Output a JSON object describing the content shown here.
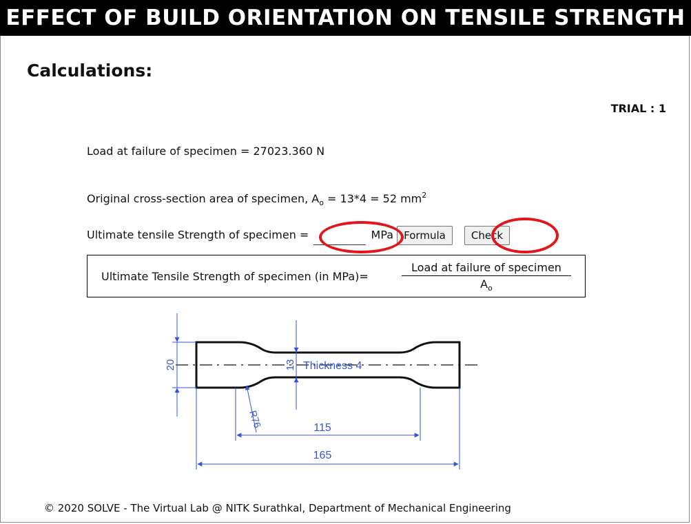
{
  "header": {
    "title": "EFFECT OF BUILD ORIENTATION ON TENSILE STRENGTH"
  },
  "section": {
    "title": "Calculations:"
  },
  "trial": {
    "label": "TRIAL : 1"
  },
  "load": {
    "text": "Load at failure of specimen = 27023.360 N"
  },
  "area": {
    "prefix": "Original cross-section area of specimen, A",
    "sub": "o",
    "mid": " = 13*4 = 52 mm",
    "sup": "2"
  },
  "uts": {
    "label": "Ultimate tensile Strength of specimen =",
    "input_value": "",
    "unit": "MPa",
    "formula_button": "Formula",
    "check_button": "Check"
  },
  "formula": {
    "label": "Ultimate Tensile Strength of specimen (in MPa)=",
    "numerator": "Load at failure of specimen",
    "denominator": "A",
    "denominator_sub": "o"
  },
  "diagram": {
    "dim_width": "20",
    "dim_neck": "13",
    "thickness": "Thickness 4",
    "radius": "R76",
    "gauge_length": "115",
    "total_length": "165",
    "color": "#3355dd"
  },
  "footer": {
    "text": "© 2020 SOLVE - The Virtual Lab @ NITK Surathkal, Department of Mechanical Engineering"
  }
}
